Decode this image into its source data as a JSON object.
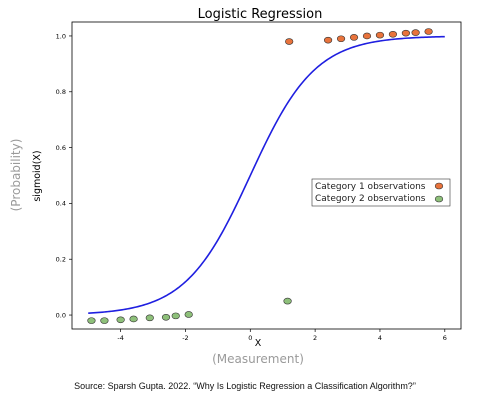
{
  "chart_data": {
    "type": "scatter",
    "title": "Logistic Regression",
    "xlabel": "X",
    "ylabel": "sigmoid(X)",
    "xlabel_annotation": "(Measurement)",
    "ylabel_annotation": "(Probability)",
    "xlim": [
      -5.5,
      6.5
    ],
    "ylim": [
      -0.05,
      1.05
    ],
    "xticks": [
      -4,
      -2,
      0,
      2,
      4,
      6
    ],
    "xtick_labels": [
      "-4",
      "-2",
      "0",
      "2",
      "4",
      "6"
    ],
    "yticks": [
      0.0,
      0.2,
      0.4,
      0.6,
      0.8,
      1.0
    ],
    "ytick_labels": [
      "0.0",
      "0.2",
      "0.4",
      "0.6",
      "0.8",
      "1.0"
    ],
    "grid": false,
    "legend_position": "center-right",
    "curve": {
      "function": "sigmoid",
      "x_range": [
        -5,
        6
      ],
      "color": "#1f1fe0"
    },
    "series": [
      {
        "name": "Category 1 observations",
        "color": "#e8733c",
        "points": [
          {
            "x": 1.2,
            "y": 0.98
          },
          {
            "x": 2.4,
            "y": 0.985
          },
          {
            "x": 2.8,
            "y": 0.99
          },
          {
            "x": 3.2,
            "y": 0.995
          },
          {
            "x": 3.6,
            "y": 1.0
          },
          {
            "x": 4.0,
            "y": 1.003
          },
          {
            "x": 4.4,
            "y": 1.006
          },
          {
            "x": 4.8,
            "y": 1.01
          },
          {
            "x": 5.1,
            "y": 1.012
          },
          {
            "x": 5.5,
            "y": 1.016
          }
        ]
      },
      {
        "name": "Category 2 observations",
        "color": "#8ec07a",
        "points": [
          {
            "x": -4.9,
            "y": -0.02
          },
          {
            "x": -4.5,
            "y": -0.02
          },
          {
            "x": -4.0,
            "y": -0.017
          },
          {
            "x": -3.6,
            "y": -0.014
          },
          {
            "x": -3.1,
            "y": -0.01
          },
          {
            "x": -2.6,
            "y": -0.008
          },
          {
            "x": -2.3,
            "y": -0.003
          },
          {
            "x": -1.9,
            "y": 0.002
          },
          {
            "x": 1.15,
            "y": 0.05
          }
        ]
      }
    ]
  },
  "source_note": "Source: Sparsh Gupta. 2022. “Why Is Logistic Regression a Classification Algorithm?”"
}
